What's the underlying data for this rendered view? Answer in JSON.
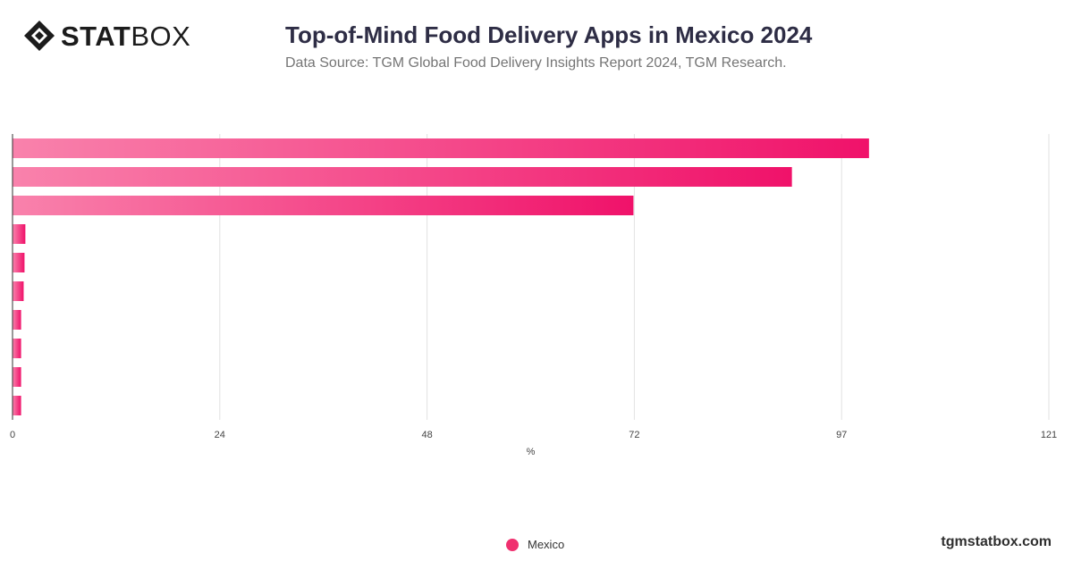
{
  "brand": {
    "logo_stat": "STAT",
    "logo_box": "BOX",
    "website": "tgmstatbox.com"
  },
  "header": {
    "title": "Top-of-Mind Food Delivery Apps in Mexico 2024",
    "subtitle": "Data Source: TGM Global Food Delivery Insights Report 2024, TGM Research."
  },
  "colors": {
    "bar_light": "#f982ac",
    "bar_dark": "#f0126a",
    "grid": "#e2e2e2",
    "axis": "#333333",
    "tick_text": "#444444"
  },
  "chart_data": {
    "type": "bar",
    "orientation": "horizontal",
    "categories": [
      "",
      "",
      "",
      "",
      "",
      "",
      "",
      "",
      "",
      ""
    ],
    "series": [
      {
        "name": "Mexico",
        "values": [
          100,
          91,
          72.5,
          1.5,
          1.4,
          1.3,
          1.0,
          1.0,
          1.0,
          1.0
        ]
      }
    ],
    "x_ticks": [
      "0",
      "24",
      "48",
      "72",
      "97",
      "121"
    ],
    "xlim": [
      0,
      121
    ],
    "xlabel": "%",
    "ylabel": "",
    "grid": true,
    "legend_position": "bottom-center"
  }
}
